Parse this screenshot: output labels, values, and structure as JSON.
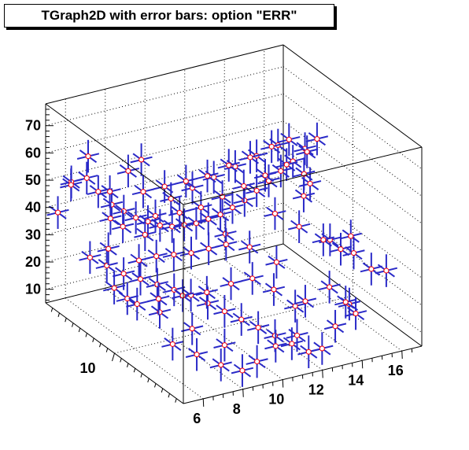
{
  "title": "TGraph2D with error bars: option \"ERR\"",
  "chart_data": {
    "type": "scatter",
    "subtype": "3d-scatter-with-error-bars",
    "title": "TGraph2D with error bars: option \"ERR\"",
    "xlabel": "",
    "ylabel": "",
    "zlabel": "",
    "xlim": [
      5,
      17
    ],
    "ylim": [
      5,
      15
    ],
    "zlim": [
      5,
      78
    ],
    "x_ticks": [
      6,
      8,
      10,
      12,
      14,
      16
    ],
    "y_ticks": [
      10
    ],
    "z_ticks": [
      10,
      20,
      30,
      40,
      50,
      60,
      70
    ],
    "grid": true,
    "marker_color": "#ff0000",
    "error_bar_color": "#2a2ac8",
    "box_line_color": "#000000",
    "points": [
      {
        "x": 5.2,
        "y": 14.4,
        "z": 40
      },
      {
        "x": 5.6,
        "y": 14.0,
        "z": 52
      },
      {
        "x": 6.1,
        "y": 13.6,
        "z": 54
      },
      {
        "x": 6.4,
        "y": 13.2,
        "z": 50
      },
      {
        "x": 6.8,
        "y": 12.8,
        "z": 46
      },
      {
        "x": 7.2,
        "y": 12.5,
        "z": 44
      },
      {
        "x": 7.6,
        "y": 12.2,
        "z": 42
      },
      {
        "x": 8.0,
        "y": 11.9,
        "z": 41
      },
      {
        "x": 8.4,
        "y": 11.6,
        "z": 40
      },
      {
        "x": 8.8,
        "y": 11.3,
        "z": 40
      },
      {
        "x": 9.2,
        "y": 11.0,
        "z": 41
      },
      {
        "x": 9.6,
        "y": 10.7,
        "z": 42
      },
      {
        "x": 10.0,
        "y": 10.4,
        "z": 44
      },
      {
        "x": 10.4,
        "y": 10.1,
        "z": 46
      },
      {
        "x": 10.8,
        "y": 9.8,
        "z": 49
      },
      {
        "x": 11.2,
        "y": 9.5,
        "z": 52
      },
      {
        "x": 11.6,
        "y": 9.2,
        "z": 56
      },
      {
        "x": 12.0,
        "y": 8.9,
        "z": 60
      },
      {
        "x": 12.4,
        "y": 8.6,
        "z": 64
      },
      {
        "x": 12.8,
        "y": 8.3,
        "z": 68
      },
      {
        "x": 13.2,
        "y": 8.0,
        "z": 73
      },
      {
        "x": 13.6,
        "y": 7.7,
        "z": 77
      },
      {
        "x": 5.5,
        "y": 12.5,
        "z": 30
      },
      {
        "x": 6.0,
        "y": 12.0,
        "z": 28
      },
      {
        "x": 6.5,
        "y": 11.5,
        "z": 26
      },
      {
        "x": 7.0,
        "y": 11.0,
        "z": 25
      },
      {
        "x": 7.5,
        "y": 10.5,
        "z": 24
      },
      {
        "x": 8.0,
        "y": 10.0,
        "z": 23
      },
      {
        "x": 8.5,
        "y": 9.5,
        "z": 22
      },
      {
        "x": 9.0,
        "y": 9.0,
        "z": 20
      },
      {
        "x": 9.5,
        "y": 8.5,
        "z": 18
      },
      {
        "x": 10.0,
        "y": 8.0,
        "z": 16
      },
      {
        "x": 10.5,
        "y": 7.5,
        "z": 14
      },
      {
        "x": 11.0,
        "y": 7.0,
        "z": 12
      },
      {
        "x": 11.5,
        "y": 6.5,
        "z": 10
      },
      {
        "x": 12.0,
        "y": 6.0,
        "z": 8
      },
      {
        "x": 6.2,
        "y": 10.8,
        "z": 20
      },
      {
        "x": 7.0,
        "y": 9.6,
        "z": 18
      },
      {
        "x": 7.8,
        "y": 8.4,
        "z": 15
      },
      {
        "x": 8.6,
        "y": 7.2,
        "z": 12
      },
      {
        "x": 9.4,
        "y": 6.0,
        "z": 9
      },
      {
        "x": 7.5,
        "y": 13.0,
        "z": 36
      },
      {
        "x": 8.2,
        "y": 12.4,
        "z": 34
      },
      {
        "x": 9.0,
        "y": 12.8,
        "z": 38
      },
      {
        "x": 9.8,
        "y": 12.2,
        "z": 40
      },
      {
        "x": 10.6,
        "y": 11.8,
        "z": 42
      },
      {
        "x": 11.4,
        "y": 11.4,
        "z": 46
      },
      {
        "x": 12.2,
        "y": 11.0,
        "z": 50
      },
      {
        "x": 13.0,
        "y": 10.6,
        "z": 54
      },
      {
        "x": 13.8,
        "y": 10.2,
        "z": 58
      },
      {
        "x": 14.4,
        "y": 9.8,
        "z": 55
      },
      {
        "x": 10.2,
        "y": 13.4,
        "z": 40
      },
      {
        "x": 11.0,
        "y": 13.0,
        "z": 44
      },
      {
        "x": 11.8,
        "y": 12.6,
        "z": 48
      },
      {
        "x": 12.6,
        "y": 12.2,
        "z": 52
      },
      {
        "x": 13.4,
        "y": 11.8,
        "z": 56
      },
      {
        "x": 14.2,
        "y": 11.4,
        "z": 60
      },
      {
        "x": 15.5,
        "y": 9.5,
        "z": 30
      },
      {
        "x": 16.0,
        "y": 8.5,
        "z": 28
      },
      {
        "x": 16.4,
        "y": 7.8,
        "z": 24
      },
      {
        "x": 16.6,
        "y": 7.0,
        "z": 26
      },
      {
        "x": 16.2,
        "y": 9.0,
        "z": 32
      },
      {
        "x": 15.2,
        "y": 7.2,
        "z": 12
      },
      {
        "x": 14.6,
        "y": 6.8,
        "z": 18
      },
      {
        "x": 14.0,
        "y": 6.2,
        "z": 22
      },
      {
        "x": 13.2,
        "y": 5.8,
        "z": 16
      },
      {
        "x": 12.4,
        "y": 5.6,
        "z": 10
      },
      {
        "x": 11.6,
        "y": 6.4,
        "z": 24
      },
      {
        "x": 10.8,
        "y": 6.8,
        "z": 30
      },
      {
        "x": 10.0,
        "y": 7.2,
        "z": 34
      },
      {
        "x": 9.2,
        "y": 7.6,
        "z": 32
      },
      {
        "x": 8.4,
        "y": 8.2,
        "z": 28
      },
      {
        "x": 7.6,
        "y": 8.8,
        "z": 26
      },
      {
        "x": 6.8,
        "y": 9.4,
        "z": 24
      },
      {
        "x": 6.0,
        "y": 9.8,
        "z": 22
      },
      {
        "x": 5.4,
        "y": 10.6,
        "z": 26
      },
      {
        "x": 5.8,
        "y": 11.6,
        "z": 36
      },
      {
        "x": 6.6,
        "y": 12.6,
        "z": 42
      },
      {
        "x": 7.4,
        "y": 13.8,
        "z": 46
      },
      {
        "x": 8.6,
        "y": 14.2,
        "z": 50
      },
      {
        "x": 9.4,
        "y": 14.4,
        "z": 52
      },
      {
        "x": 12.8,
        "y": 9.6,
        "z": 44
      },
      {
        "x": 13.6,
        "y": 9.0,
        "z": 40
      },
      {
        "x": 14.4,
        "y": 8.4,
        "z": 36
      },
      {
        "x": 15.0,
        "y": 8.0,
        "z": 33
      },
      {
        "x": 11.0,
        "y": 10.6,
        "z": 36
      },
      {
        "x": 11.8,
        "y": 10.0,
        "z": 32
      },
      {
        "x": 12.6,
        "y": 9.2,
        "z": 28
      },
      {
        "x": 8.8,
        "y": 13.4,
        "z": 45
      },
      {
        "x": 9.6,
        "y": 13.0,
        "z": 47
      },
      {
        "x": 10.4,
        "y": 12.6,
        "z": 49
      },
      {
        "x": 11.2,
        "y": 12.2,
        "z": 51
      },
      {
        "x": 12.0,
        "y": 11.8,
        "z": 55
      },
      {
        "x": 12.8,
        "y": 11.4,
        "z": 58
      },
      {
        "x": 13.6,
        "y": 11.0,
        "z": 62
      },
      {
        "x": 14.2,
        "y": 10.6,
        "z": 65
      },
      {
        "x": 7.2,
        "y": 11.4,
        "z": 30
      },
      {
        "x": 7.8,
        "y": 11.0,
        "z": 32
      },
      {
        "x": 8.4,
        "y": 10.6,
        "z": 33
      },
      {
        "x": 9.0,
        "y": 10.2,
        "z": 34
      },
      {
        "x": 9.6,
        "y": 9.8,
        "z": 36
      },
      {
        "x": 10.2,
        "y": 9.4,
        "z": 38
      },
      {
        "x": 6.4,
        "y": 7.8,
        "z": 14
      },
      {
        "x": 7.2,
        "y": 7.2,
        "z": 11
      },
      {
        "x": 8.0,
        "y": 6.6,
        "z": 8
      },
      {
        "x": 8.8,
        "y": 6.2,
        "z": 6
      },
      {
        "x": 10.2,
        "y": 5.8,
        "z": 14
      },
      {
        "x": 11.0,
        "y": 5.4,
        "z": 18
      },
      {
        "x": 12.8,
        "y": 7.4,
        "z": 20
      },
      {
        "x": 13.6,
        "y": 6.8,
        "z": 26
      },
      {
        "x": 14.8,
        "y": 10.4,
        "z": 44
      },
      {
        "x": 15.4,
        "y": 10.8,
        "z": 46
      },
      {
        "x": 15.8,
        "y": 11.6,
        "z": 54
      },
      {
        "x": 6.0,
        "y": 14.6,
        "z": 48
      },
      {
        "x": 7.0,
        "y": 14.8,
        "z": 56
      }
    ]
  }
}
